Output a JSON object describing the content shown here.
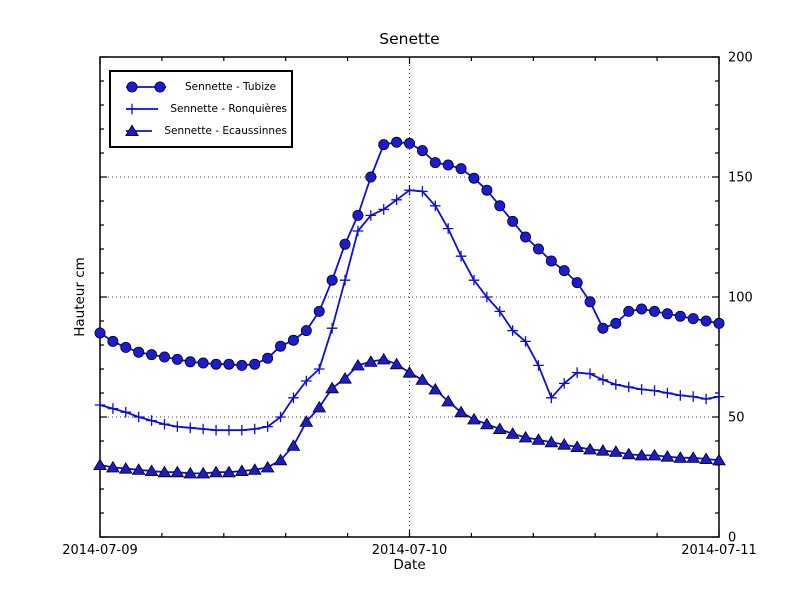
{
  "figure": {
    "title": "Senette",
    "xlabel": "Date",
    "ylabel": "Hauteur cm"
  },
  "chart_data": {
    "type": "line",
    "title": "Senette",
    "xlabel": "Date",
    "ylabel": "Hauteur cm",
    "x_unit": "hours since 2014-07-09 00:00 (one point per hour)",
    "xlim": [
      0,
      48
    ],
    "ylim": [
      0,
      200
    ],
    "x_step_hours": 1,
    "x_ticks": [
      {
        "hour": 0,
        "label": "2014-07-09"
      },
      {
        "hour": 24,
        "label": "2014-07-10"
      },
      {
        "hour": 48,
        "label": "2014-07-11"
      }
    ],
    "x_minor_step_hours": 4.8,
    "y_ticks": [
      0,
      50,
      100,
      150,
      200
    ],
    "y_minor_step": 10,
    "grid": {
      "x_at_hours": [
        24
      ],
      "y_at": [
        50,
        100,
        150
      ],
      "style": "dotted"
    },
    "legend_position": "upper-left",
    "line_color": "#0d0de0",
    "series": [
      {
        "name": "Sennette - Tubize",
        "marker": "circle",
        "color": "#0d0de0",
        "marker_fill": "#1c1ccb",
        "values": [
          85,
          81.5,
          79,
          77,
          76,
          75,
          74,
          73,
          72.5,
          72,
          72,
          71.5,
          72,
          74.5,
          79.5,
          82,
          86,
          94,
          107,
          122,
          134,
          150,
          163.5,
          164.5,
          164,
          161,
          156,
          155,
          153.5,
          149.5,
          144.5,
          138,
          131.5,
          125,
          120,
          115,
          111,
          106,
          98,
          87,
          89,
          94,
          95,
          94,
          93,
          92,
          91,
          90,
          89
        ]
      },
      {
        "name": "Sennette - Ronquières",
        "marker": "plus",
        "color": "#0d0de0",
        "marker_fill": "#0d0de0",
        "values": [
          55,
          53.5,
          52,
          50,
          48.5,
          47,
          46,
          45.5,
          45,
          44.5,
          44.5,
          44.5,
          45,
          46,
          50,
          58,
          65,
          70,
          87,
          107,
          127.5,
          134,
          136.5,
          140.5,
          144.5,
          144,
          138,
          128.5,
          117,
          107,
          100,
          94,
          86,
          81.5,
          71.5,
          58,
          64,
          68.5,
          68,
          65.5,
          63.5,
          62.5,
          61.5,
          61,
          60,
          59,
          58.5,
          57.5,
          58.5
        ]
      },
      {
        "name": "Sennette - Ecaussinnes",
        "marker": "triangle-up",
        "color": "#0d0de0",
        "marker_fill": "#1c1cc0",
        "values": [
          30,
          29,
          28.5,
          28,
          27.5,
          27,
          27,
          26.5,
          26.5,
          27,
          27,
          27.5,
          28,
          29,
          32,
          38,
          48,
          54,
          62,
          66,
          71.5,
          73,
          74,
          72,
          68.5,
          65.5,
          61.5,
          56.5,
          52,
          49,
          47,
          45,
          43,
          41.5,
          40.5,
          39.5,
          38.5,
          37.5,
          36.5,
          36,
          35.5,
          34.5,
          34,
          34,
          33.5,
          33,
          33,
          32.5,
          32
        ]
      }
    ]
  }
}
